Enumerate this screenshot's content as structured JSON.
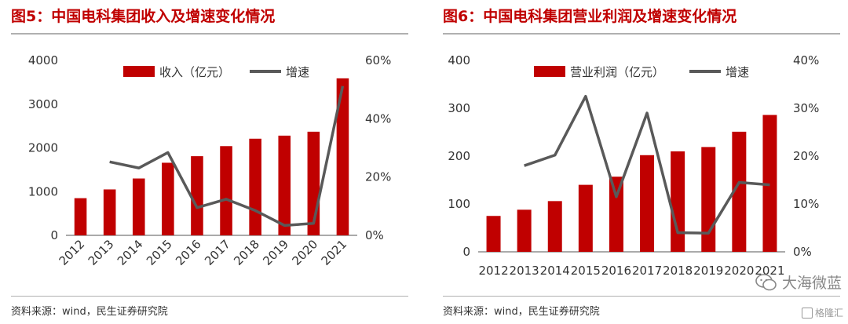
{
  "left": {
    "title": "图5：中国电科集团收入及增速变化情况",
    "source": "资料来源：wind，民生证券研究院"
  },
  "right": {
    "title": "图6：中国电科集团营业利润及增速变化情况",
    "source": "资料来源：wind，民生证券研究院"
  },
  "watermark": {
    "text": "大海微蓝",
    "icon": "wechat-icon"
  },
  "brand": {
    "text": "格隆汇"
  },
  "colors": {
    "bar": "#c00000",
    "line": "#595959",
    "title": "#c00000"
  },
  "chart_data": [
    {
      "type": "bar",
      "combo": "bar+line",
      "categories": [
        "2012",
        "2013",
        "2014",
        "2015",
        "2016",
        "2017",
        "2018",
        "2019",
        "2020",
        "2021"
      ],
      "series": [
        {
          "name": "收入（亿元）",
          "type": "bar",
          "axis": "left",
          "values": [
            850,
            1050,
            1300,
            1660,
            1810,
            2040,
            2210,
            2280,
            2370,
            3590
          ]
        },
        {
          "name": "增速",
          "type": "line",
          "axis": "right",
          "values": [
            null,
            25.2,
            23.1,
            28.4,
            9.5,
            12.4,
            8.5,
            3.4,
            4.1,
            51.2
          ]
        }
      ],
      "ylim": [
        0,
        4000
      ],
      "yticks": [
        "0",
        "1000",
        "2000",
        "3000",
        "4000"
      ],
      "y2lim": [
        0,
        60
      ],
      "y2ticks": [
        "0%",
        "20%",
        "40%",
        "60%"
      ],
      "xlabel_rotation": "rotated",
      "legend_position": "top"
    },
    {
      "type": "bar",
      "combo": "bar+line",
      "categories": [
        "2012",
        "2013",
        "2014",
        "2015",
        "2016",
        "2017",
        "2018",
        "2019",
        "2020",
        "2021"
      ],
      "series": [
        {
          "name": "营业利润（亿元）",
          "type": "bar",
          "axis": "left",
          "values": [
            75,
            88,
            106,
            140,
            157,
            202,
            210,
            219,
            251,
            286
          ]
        },
        {
          "name": "增速",
          "type": "line",
          "axis": "right",
          "values": [
            null,
            18.0,
            20.2,
            32.5,
            11.5,
            29.0,
            4.0,
            3.9,
            14.5,
            14.0
          ]
        }
      ],
      "ylim": [
        0,
        400
      ],
      "yticks": [
        "0",
        "100",
        "200",
        "300",
        "400"
      ],
      "y2lim": [
        0,
        40
      ],
      "y2ticks": [
        "0%",
        "10%",
        "20%",
        "30%",
        "40%"
      ],
      "xlabel_rotation": "horizontal",
      "legend_position": "top"
    }
  ]
}
